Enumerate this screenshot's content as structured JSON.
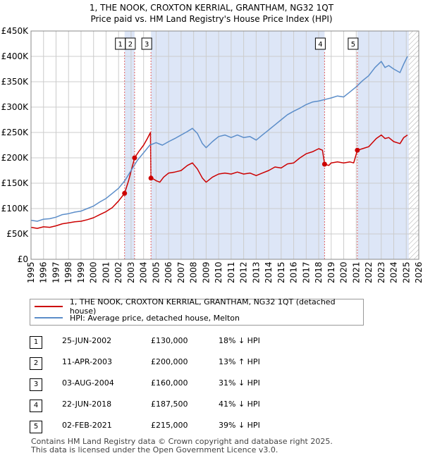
{
  "title_line1": "1, THE NOOK, CROXTON KERRIAL, GRANTHAM, NG32 1QT",
  "title_line2": "Price paid vs. HM Land Registry's House Price Index (HPI)",
  "colors": {
    "price": "#cc0000",
    "hpi": "#5b8dc9",
    "shade": "#dde6f7",
    "grid": "#cccccc",
    "vline": "#e06060"
  },
  "chart_data": {
    "type": "line",
    "x_range": [
      1995,
      2026
    ],
    "ylim": [
      0,
      450000
    ],
    "y_ticks": [
      0,
      50000,
      100000,
      150000,
      200000,
      250000,
      300000,
      350000,
      400000,
      450000
    ],
    "y_tick_labels": [
      "£0",
      "£50K",
      "£100K",
      "£150K",
      "£200K",
      "£250K",
      "£300K",
      "£350K",
      "£400K",
      "£450K"
    ],
    "x_ticks": [
      1995,
      1996,
      1997,
      1998,
      1999,
      2000,
      2001,
      2002,
      2003,
      2004,
      2005,
      2006,
      2007,
      2008,
      2009,
      2010,
      2011,
      2012,
      2013,
      2014,
      2015,
      2016,
      2017,
      2018,
      2019,
      2020,
      2021,
      2022,
      2023,
      2024,
      2025,
      2026
    ],
    "x_tick_labels": [
      "1995",
      "1996",
      "1997",
      "1998",
      "1999",
      "2000",
      "2001",
      "2002",
      "2003",
      "2004",
      "2005",
      "2006",
      "2007",
      "2008",
      "2009",
      "2010",
      "2011",
      "2012",
      "2013",
      "2014",
      "2015",
      "2016",
      "2017",
      "2018",
      "2019",
      "2020",
      "2021",
      "2022",
      "2023",
      "2024",
      "2025",
      "2026"
    ],
    "shaded_intervals": [
      [
        2002.48,
        2003.28
      ],
      [
        2004.59,
        2018.47
      ],
      [
        2021.09,
        2025.2
      ]
    ],
    "hatched_after": 2025.2,
    "series": [
      {
        "name": "1, THE NOOK, CROXTON KERRIAL, GRANTHAM, NG32 1QT (detached house)",
        "key": "price",
        "points": [
          [
            1995,
            63000
          ],
          [
            1995.5,
            61000
          ],
          [
            1996,
            64000
          ],
          [
            1996.5,
            63000
          ],
          [
            1997,
            66000
          ],
          [
            1997.5,
            70000
          ],
          [
            1998,
            72000
          ],
          [
            1998.5,
            74000
          ],
          [
            1999,
            75000
          ],
          [
            1999.5,
            78000
          ],
          [
            2000,
            82000
          ],
          [
            2000.5,
            88000
          ],
          [
            2001,
            94000
          ],
          [
            2001.5,
            102000
          ],
          [
            2002,
            115000
          ],
          [
            2002.48,
            130000
          ],
          [
            2002.8,
            155000
          ],
          [
            2003.28,
            200000
          ],
          [
            2003.6,
            212000
          ],
          [
            2004.0,
            225000
          ],
          [
            2004.3,
            238000
          ],
          [
            2004.55,
            250000
          ],
          [
            2004.59,
            160000
          ],
          [
            2004.8,
            158000
          ],
          [
            2005.0,
            155000
          ],
          [
            2005.3,
            152000
          ],
          [
            2005.6,
            162000
          ],
          [
            2006,
            170000
          ],
          [
            2006.5,
            172000
          ],
          [
            2007,
            175000
          ],
          [
            2007.5,
            185000
          ],
          [
            2007.9,
            190000
          ],
          [
            2008.3,
            178000
          ],
          [
            2008.7,
            160000
          ],
          [
            2009,
            152000
          ],
          [
            2009.5,
            162000
          ],
          [
            2010,
            168000
          ],
          [
            2010.5,
            170000
          ],
          [
            2011,
            168000
          ],
          [
            2011.5,
            172000
          ],
          [
            2012,
            168000
          ],
          [
            2012.5,
            170000
          ],
          [
            2013,
            165000
          ],
          [
            2013.5,
            170000
          ],
          [
            2014,
            175000
          ],
          [
            2014.5,
            182000
          ],
          [
            2015,
            180000
          ],
          [
            2015.5,
            188000
          ],
          [
            2016,
            190000
          ],
          [
            2016.5,
            200000
          ],
          [
            2017,
            208000
          ],
          [
            2017.5,
            212000
          ],
          [
            2018,
            218000
          ],
          [
            2018.3,
            215000
          ],
          [
            2018.47,
            187500
          ],
          [
            2018.8,
            185000
          ],
          [
            2019,
            190000
          ],
          [
            2019.5,
            192000
          ],
          [
            2020,
            190000
          ],
          [
            2020.5,
            192000
          ],
          [
            2020.8,
            190000
          ],
          [
            2021.09,
            215000
          ],
          [
            2021.5,
            218000
          ],
          [
            2022,
            222000
          ],
          [
            2022.3,
            230000
          ],
          [
            2022.6,
            238000
          ],
          [
            2023,
            245000
          ],
          [
            2023.3,
            238000
          ],
          [
            2023.6,
            240000
          ],
          [
            2024,
            232000
          ],
          [
            2024.5,
            228000
          ],
          [
            2024.8,
            240000
          ],
          [
            2025.1,
            245000
          ]
        ]
      },
      {
        "name": "HPI: Average price, detached house, Melton",
        "key": "hpi",
        "points": [
          [
            1995,
            77000
          ],
          [
            1995.5,
            75000
          ],
          [
            1996,
            79000
          ],
          [
            1996.5,
            80000
          ],
          [
            1997,
            83000
          ],
          [
            1997.5,
            88000
          ],
          [
            1998,
            90000
          ],
          [
            1998.5,
            93000
          ],
          [
            1999,
            95000
          ],
          [
            1999.5,
            100000
          ],
          [
            2000,
            105000
          ],
          [
            2000.5,
            113000
          ],
          [
            2001,
            120000
          ],
          [
            2001.5,
            130000
          ],
          [
            2002,
            140000
          ],
          [
            2002.5,
            155000
          ],
          [
            2003,
            175000
          ],
          [
            2003.5,
            195000
          ],
          [
            2004,
            210000
          ],
          [
            2004.5,
            225000
          ],
          [
            2005,
            230000
          ],
          [
            2005.5,
            225000
          ],
          [
            2006,
            232000
          ],
          [
            2006.5,
            238000
          ],
          [
            2007,
            245000
          ],
          [
            2007.5,
            252000
          ],
          [
            2007.9,
            258000
          ],
          [
            2008.3,
            248000
          ],
          [
            2008.7,
            228000
          ],
          [
            2009,
            220000
          ],
          [
            2009.5,
            232000
          ],
          [
            2010,
            242000
          ],
          [
            2010.5,
            245000
          ],
          [
            2011,
            240000
          ],
          [
            2011.5,
            245000
          ],
          [
            2012,
            240000
          ],
          [
            2012.5,
            242000
          ],
          [
            2013,
            235000
          ],
          [
            2013.5,
            245000
          ],
          [
            2014,
            255000
          ],
          [
            2014.5,
            265000
          ],
          [
            2015,
            275000
          ],
          [
            2015.5,
            285000
          ],
          [
            2016,
            292000
          ],
          [
            2016.5,
            298000
          ],
          [
            2017,
            305000
          ],
          [
            2017.5,
            310000
          ],
          [
            2018,
            312000
          ],
          [
            2018.5,
            315000
          ],
          [
            2019,
            318000
          ],
          [
            2019.5,
            322000
          ],
          [
            2020,
            320000
          ],
          [
            2020.5,
            330000
          ],
          [
            2021,
            340000
          ],
          [
            2021.5,
            352000
          ],
          [
            2022,
            362000
          ],
          [
            2022.5,
            378000
          ],
          [
            2023,
            390000
          ],
          [
            2023.3,
            378000
          ],
          [
            2023.6,
            382000
          ],
          [
            2024,
            375000
          ],
          [
            2024.5,
            368000
          ],
          [
            2024.8,
            385000
          ],
          [
            2025.1,
            400000
          ]
        ]
      }
    ],
    "markers": [
      {
        "label": "1",
        "x": 2002.48,
        "y": 130000
      },
      {
        "label": "2",
        "x": 2003.28,
        "y": 200000
      },
      {
        "label": "3",
        "x": 2004.59,
        "y": 160000
      },
      {
        "label": "4",
        "x": 2018.47,
        "y": 187500
      },
      {
        "label": "5",
        "x": 2021.09,
        "y": 215000
      }
    ]
  },
  "legend": {
    "price_label": "1, THE NOOK, CROXTON KERRIAL, GRANTHAM, NG32 1QT (detached house)",
    "hpi_label": "HPI: Average price, detached house, Melton"
  },
  "sales": [
    {
      "num": "1",
      "date": "25-JUN-2002",
      "price": "£130,000",
      "hpi": "18% ↓ HPI"
    },
    {
      "num": "2",
      "date": "11-APR-2003",
      "price": "£200,000",
      "hpi": "13% ↑ HPI"
    },
    {
      "num": "3",
      "date": "03-AUG-2004",
      "price": "£160,000",
      "hpi": "31% ↓ HPI"
    },
    {
      "num": "4",
      "date": "22-JUN-2018",
      "price": "£187,500",
      "hpi": "41% ↓ HPI"
    },
    {
      "num": "5",
      "date": "02-FEB-2021",
      "price": "£215,000",
      "hpi": "39% ↓ HPI"
    }
  ],
  "footer_line1": "Contains HM Land Registry data © Crown copyright and database right 2025.",
  "footer_line2": "This data is licensed under the Open Government Licence v3.0."
}
